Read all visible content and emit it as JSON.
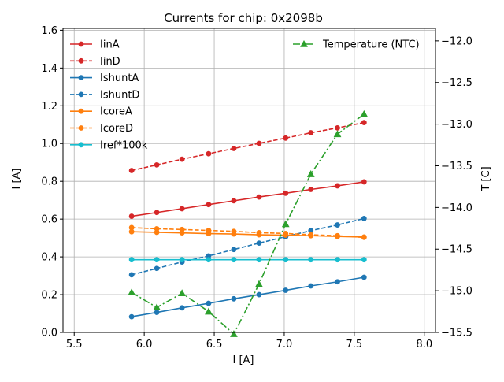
{
  "chart_data": {
    "type": "line",
    "title": "Currents for chip: 0x2098b",
    "xlabel": "I [A]",
    "ylabel": "I [A]",
    "y2label": "T [C]",
    "xlim": [
      5.42,
      8.08
    ],
    "ylim": [
      0,
      1.61
    ],
    "y2lim": [
      -15.5,
      -11.85
    ],
    "xticks": [
      5.5,
      6.0,
      6.5,
      7.0,
      7.5,
      8.0
    ],
    "xtick_labels": [
      "5.5",
      "6.0",
      "6.5",
      "7.0",
      "7.5",
      "8.0"
    ],
    "yticks": [
      0.0,
      0.2,
      0.4,
      0.6,
      0.8,
      1.0,
      1.2,
      1.4,
      1.6
    ],
    "ytick_labels": [
      "0.0",
      "0.2",
      "0.4",
      "0.6",
      "0.8",
      "1.0",
      "1.2",
      "1.4",
      "1.6"
    ],
    "y2ticks": [
      -15.5,
      -15.0,
      -14.5,
      -14.0,
      -13.5,
      -13.0,
      -12.5,
      -12.0
    ],
    "y2tick_labels": [
      "−15.5",
      "−15.0",
      "−14.5",
      "−14.0",
      "−13.5",
      "−13.0",
      "−12.5",
      "−12.0"
    ],
    "grid": true,
    "x": [
      5.91,
      6.09,
      6.27,
      6.46,
      6.64,
      6.82,
      7.01,
      7.19,
      7.38,
      7.57
    ],
    "series": [
      {
        "name": "IinA",
        "axis": "left",
        "color": "#d62728",
        "dash": "solid",
        "marker": "circle",
        "values": [
          0.615,
          0.635,
          0.655,
          0.677,
          0.697,
          0.717,
          0.737,
          0.757,
          0.776,
          0.797
        ]
      },
      {
        "name": "IinD",
        "axis": "left",
        "color": "#d62728",
        "dash": "dashed",
        "marker": "circle",
        "values": [
          0.857,
          0.887,
          0.917,
          0.946,
          0.974,
          1.001,
          1.029,
          1.057,
          1.083,
          1.111
        ]
      },
      {
        "name": "IshuntA",
        "axis": "left",
        "color": "#1f77b4",
        "dash": "solid",
        "marker": "circle",
        "values": [
          0.083,
          0.106,
          0.13,
          0.154,
          0.178,
          0.2,
          0.223,
          0.246,
          0.268,
          0.292
        ]
      },
      {
        "name": "IshuntD",
        "axis": "left",
        "color": "#1f77b4",
        "dash": "dashed",
        "marker": "circle",
        "values": [
          0.305,
          0.339,
          0.373,
          0.405,
          0.439,
          0.473,
          0.507,
          0.539,
          0.569,
          0.603
        ]
      },
      {
        "name": "IcoreA",
        "axis": "left",
        "color": "#ff7f0e",
        "dash": "solid",
        "marker": "circle",
        "values": [
          0.533,
          0.53,
          0.527,
          0.523,
          0.521,
          0.517,
          0.515,
          0.512,
          0.508,
          0.505
        ]
      },
      {
        "name": "IcoreD",
        "axis": "left",
        "color": "#ff7f0e",
        "dash": "dashed",
        "marker": "circle",
        "values": [
          0.555,
          0.549,
          0.545,
          0.54,
          0.535,
          0.528,
          0.524,
          0.517,
          0.512,
          0.503
        ]
      },
      {
        "name": "Iref*100k",
        "axis": "left",
        "color": "#17becf",
        "dash": "solid",
        "marker": "circle",
        "values": [
          0.385,
          0.385,
          0.385,
          0.385,
          0.385,
          0.385,
          0.385,
          0.385,
          0.385,
          0.385
        ]
      },
      {
        "name": "Temperature (NTC)",
        "axis": "right",
        "color": "#2ca02c",
        "dash": "dashdot",
        "marker": "triangle",
        "values": [
          -15.02,
          -15.2,
          -15.03,
          -15.25,
          -15.52,
          -14.92,
          -14.2,
          -13.6,
          -13.12,
          -12.88
        ]
      }
    ],
    "legend_left": [
      "IinA",
      "IinD",
      "IshuntA",
      "IshuntD",
      "IcoreA",
      "IcoreD",
      "Iref*100k"
    ],
    "legend_right": [
      "Temperature (NTC)"
    ],
    "legend_placement": [
      "upper-left",
      "upper-right"
    ]
  }
}
